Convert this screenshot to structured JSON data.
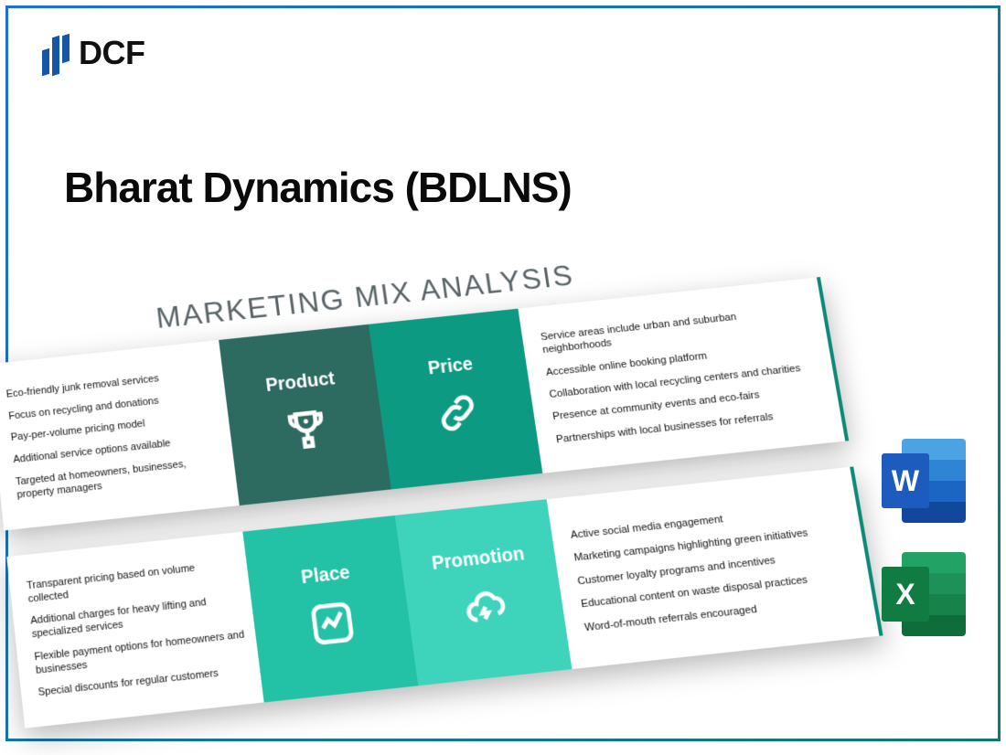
{
  "logo": {
    "text": "DCF"
  },
  "title": "Bharat Dynamics (BDLNS)",
  "diagram": {
    "heading": "MARKETING MIX ANALYSIS",
    "heading_color": "#5a6468",
    "rows": [
      {
        "left_items": [
          "Eco-friendly junk removal services",
          "Focus on recycling and donations",
          "Pay-per-volume pricing model",
          "Additional service options available",
          "Targeted at homeowners, businesses, property managers"
        ],
        "cards": [
          {
            "label": "Product",
            "color": "#2d6b61",
            "icon": "trophy"
          },
          {
            "label": "Price",
            "color": "#0d9a82",
            "icon": "link"
          }
        ],
        "right_items": [
          "Service areas include urban and suburban neighborhoods",
          "Accessible online booking platform",
          "Collaboration with local recycling centers and charities",
          "Presence at community events and eco-fairs",
          "Partnerships with local businesses for referrals"
        ]
      },
      {
        "left_items": [
          "Transparent pricing based on volume collected",
          "Additional charges for heavy lifting and specialized services",
          "Flexible payment options for homeowners and businesses",
          "Special discounts for regular customers"
        ],
        "cards": [
          {
            "label": "Place",
            "color": "#23c1a5",
            "icon": "chart"
          },
          {
            "label": "Promotion",
            "color": "#3dd4bb",
            "icon": "cloud"
          }
        ],
        "right_items": [
          "Active social media engagement",
          "Marketing campaigns highlighting green initiatives",
          "Customer loyalty programs and incentives",
          "Educational content on waste disposal practices",
          "Word-of-mouth referrals encouraged"
        ]
      }
    ]
  },
  "apps": {
    "word": {
      "letter": "W",
      "letter_bg": "#1d5bbf",
      "stripes": [
        "#4ba3e3",
        "#2f84d4",
        "#1b66c2",
        "#12479b"
      ]
    },
    "excel": {
      "letter": "X",
      "letter_bg": "#107c41",
      "stripes": [
        "#21a366",
        "#1e9158",
        "#17834b",
        "#0f6d3c"
      ]
    }
  }
}
